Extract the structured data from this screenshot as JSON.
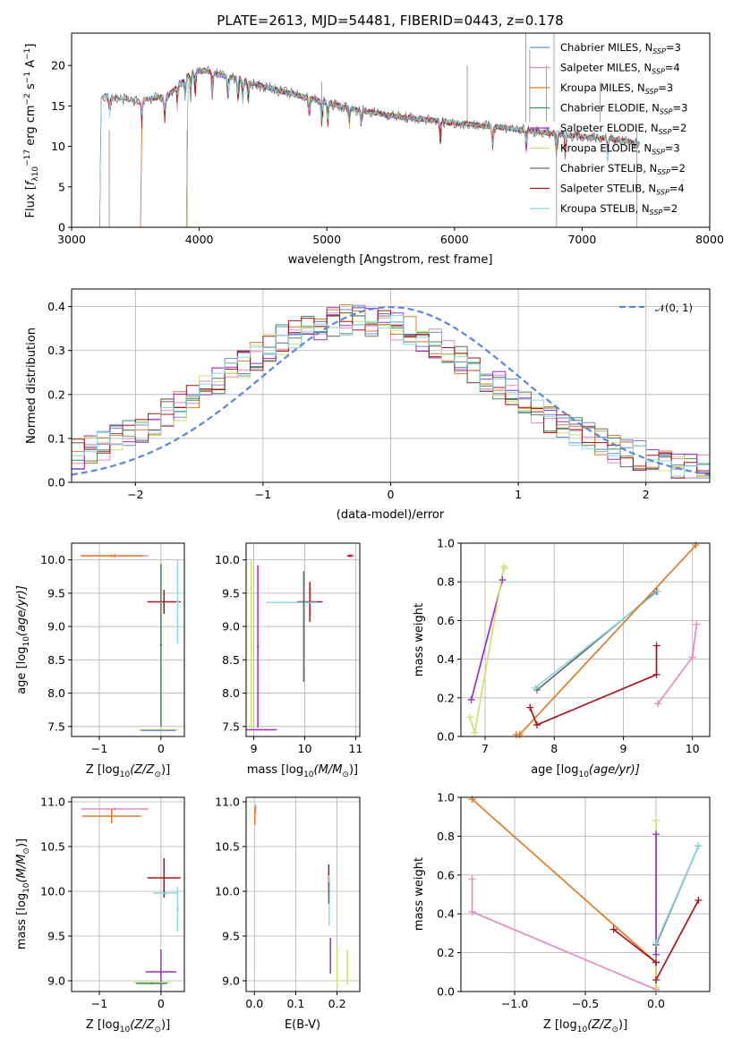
{
  "palette": {
    "Chabrier MILES": "#6b8fd6",
    "Salpeter MILES": "#e48ac4",
    "Kroupa MILES": "#e07b28",
    "Chabrier ELODIE": "#3f8f5a",
    "Salpeter ELODIE": "#9a2fc7",
    "Kroupa ELODIE": "#cde26b",
    "Chabrier STELIB": "#6a6a6a",
    "Salpeter STELIB": "#a8151e",
    "Kroupa STELIB": "#8ad6e0"
  },
  "chart_data": [
    {
      "id": "spectrum",
      "type": "line",
      "title": "PLATE=2613, MJD=54481, FIBERID=0443, z=0.178",
      "xlabel": "wavelength [Angstrom, rest frame]",
      "ylabel_parts": [
        "Flux [",
        "f",
        "λ",
        "10",
        "−17",
        " erg cm",
        "−2",
        " s",
        "−1",
        " A",
        "−1",
        "]"
      ],
      "xlim": [
        3000,
        8000
      ],
      "ylim": [
        0,
        24
      ],
      "xticks": [
        "3000",
        "4000",
        "5000",
        "6000",
        "7000",
        "8000"
      ],
      "xtick_values": [
        3000,
        4000,
        5000,
        6000,
        7000,
        8000
      ],
      "yticks": [
        "0",
        "5",
        "10",
        "15",
        "20"
      ],
      "ytick_values": [
        0,
        5,
        10,
        15,
        20
      ],
      "legend": [
        {
          "model": "Chabrier MILES",
          "n": "3"
        },
        {
          "model": "Salpeter MILES",
          "n": "4"
        },
        {
          "model": "Kroupa MILES",
          "n": "3"
        },
        {
          "model": "Chabrier ELODIE",
          "n": "3"
        },
        {
          "model": "Salpeter ELODIE",
          "n": "2"
        },
        {
          "model": "Kroupa ELODIE",
          "n": "3"
        },
        {
          "model": "Chabrier STELIB",
          "n": "2"
        },
        {
          "model": "Salpeter STELIB",
          "n": "4"
        },
        {
          "model": "Kroupa STELIB",
          "n": "2"
        }
      ],
      "legend_prefix": "N",
      "legend_sub": "SSP",
      "legend_location": "right",
      "continuum_wavelength": [
        3250,
        3500,
        3750,
        3900,
        4000,
        4300,
        4600,
        4900,
        5200,
        5600,
        6000,
        6400,
        6800,
        7200,
        7450
      ],
      "continuum_flux": [
        16.2,
        15.6,
        16.2,
        18.5,
        19.5,
        18.3,
        17.0,
        15.8,
        14.6,
        13.6,
        12.9,
        12.3,
        11.5,
        11.0,
        10.3
      ],
      "low_wavelength_cutoffs": [
        {
          "model": "Chabrier MILES",
          "start": 3540
        },
        {
          "model": "Salpeter MILES",
          "start": 3540
        },
        {
          "model": "Kroupa MILES",
          "start": 3540
        },
        {
          "model": "Chabrier ELODIE",
          "start": 3900
        },
        {
          "model": "Salpeter ELODIE",
          "start": 3900
        },
        {
          "model": "Kroupa ELODIE",
          "start": 3900
        },
        {
          "model": "Chabrier STELIB",
          "start": 3220
        },
        {
          "model": "Salpeter STELIB",
          "start": 3220
        },
        {
          "model": "Kroupa STELIB",
          "start": 3220
        }
      ]
    },
    {
      "id": "residuals",
      "type": "histogram",
      "xlabel": "(data-model)/error",
      "ylabel": "Normed distribution",
      "xlim": [
        -2.5,
        2.5
      ],
      "ylim": [
        0,
        0.44
      ],
      "xticks": [
        "−2",
        "−1",
        "0",
        "1",
        "2"
      ],
      "xtick_values": [
        -2,
        -1,
        0,
        1,
        2
      ],
      "yticks": [
        "0.0",
        "0.1",
        "0.2",
        "0.3",
        "0.4"
      ],
      "ytick_values": [
        0,
        0.1,
        0.2,
        0.3,
        0.4
      ],
      "grid": true,
      "reference_curve": {
        "label": "𝒩(0, 1)",
        "mean": 0,
        "sigma": 1
      },
      "bin_width": 0.1,
      "series_shape": {
        "mean": -0.28,
        "sigma": 1.07,
        "peak": 0.35
      }
    },
    {
      "id": "age_vs_Z",
      "type": "errorbar",
      "xlabel_parts": [
        "Z [log",
        "10",
        "(Z/Z",
        "⊙",
        ")]"
      ],
      "ylabel_parts": [
        "age  [log",
        "10",
        "(age/yr)]"
      ],
      "xlim": [
        -1.45,
        0.38
      ],
      "ylim": [
        7.35,
        10.25
      ],
      "xticks": [
        "−1",
        "0"
      ],
      "xtick_values": [
        -1,
        0
      ],
      "yticks": [
        "7.5",
        "8.0",
        "8.5",
        "9.0",
        "9.5",
        "10.0"
      ],
      "ytick_values": [
        7.5,
        8.0,
        8.5,
        9.0,
        9.5,
        10.0
      ],
      "points": [
        {
          "model": "Salpeter MILES",
          "x": -0.75,
          "xerr": 0.55,
          "y": 10.06,
          "yerr": 0.03
        },
        {
          "model": "Kroupa MILES",
          "x": -0.8,
          "xerr": 0.5,
          "y": 10.06,
          "yerr": 0.02
        },
        {
          "model": "Salpeter STELIB",
          "x": 0.05,
          "xerr": 0.27,
          "y": 9.37,
          "yerr": 0.18
        },
        {
          "model": "Kroupa STELIB",
          "x": 0.27,
          "xerr": 0.02,
          "y": 9.37,
          "yerr": 0.63
        },
        {
          "model": "Kroupa ELODIE",
          "x": 0.0,
          "xerr": 0.02,
          "y": 8.72,
          "yerr": 1.27
        },
        {
          "model": "Chabrier ELODIE",
          "x": 0.0,
          "xerr": 0.02,
          "y": 8.72,
          "yerr": 1.22
        },
        {
          "model": "Kroupa ELODIE",
          "x": -0.04,
          "xerr": 0.32,
          "y": 7.45,
          "yerr": 0.01
        },
        {
          "model": "Chabrier MILES",
          "x": -0.04,
          "xerr": 0.28,
          "y": 7.44,
          "yerr": 0.01
        }
      ]
    },
    {
      "id": "age_vs_mass",
      "type": "errorbar",
      "xlabel_parts": [
        "mass [log",
        "10",
        "(M/M",
        "⊙",
        ")]"
      ],
      "xlim": [
        8.85,
        11.08
      ],
      "ylim": [
        7.35,
        10.25
      ],
      "xticks": [
        "9",
        "10",
        "11"
      ],
      "xtick_values": [
        9,
        10,
        11
      ],
      "yticks": [
        "7.5",
        "8.0",
        "8.5",
        "9.0",
        "9.5",
        "10.0"
      ],
      "ytick_values": [
        7.5,
        8.0,
        8.5,
        9.0,
        9.5,
        10.0
      ],
      "points": [
        {
          "model": "Salpeter MILES",
          "x": 10.92,
          "xerr": 0.06,
          "y": 10.06,
          "yerr": 0.03
        },
        {
          "model": "Salpeter STELIB",
          "x": 10.88,
          "xerr": 0.05,
          "y": 10.06,
          "yerr": 0.02
        },
        {
          "model": "Salpeter STELIB",
          "x": 10.1,
          "xerr": 0.25,
          "y": 9.37,
          "yerr": 0.3
        },
        {
          "model": "Kroupa STELIB",
          "x": 9.75,
          "xerr": 0.5,
          "y": 9.36,
          "yerr": 0.01
        },
        {
          "model": "Chabrier STELIB",
          "x": 9.98,
          "xerr": 0.02,
          "y": 9.0,
          "yerr": 0.83
        },
        {
          "model": "Salpeter ELODIE",
          "x": 9.08,
          "xerr": 0.02,
          "y": 8.7,
          "yerr": 1.22
        },
        {
          "model": "Kroupa ELODIE",
          "x": 8.95,
          "xerr": 0.02,
          "y": 8.72,
          "yerr": 1.27
        },
        {
          "model": "Salpeter ELODIE",
          "x": 9.15,
          "xerr": 0.3,
          "y": 7.45,
          "yerr": 0.01
        }
      ]
    },
    {
      "id": "weight_vs_age",
      "type": "line",
      "xlabel_parts": [
        "age  [log",
        "10",
        "(age/yr)]"
      ],
      "ylabel": "mass weight",
      "xlim": [
        6.65,
        10.25
      ],
      "ylim": [
        0,
        1.0
      ],
      "xticks": [
        "7",
        "8",
        "9",
        "10"
      ],
      "xtick_values": [
        7,
        8,
        9,
        10
      ],
      "yticks": [
        "0.0",
        "0.2",
        "0.4",
        "0.6",
        "0.8",
        "1.0"
      ],
      "ytick_values": [
        0,
        0.2,
        0.4,
        0.6,
        0.8,
        1.0
      ],
      "series": [
        {
          "model": "Salpeter ELODIE",
          "x": [
            6.8,
            7.25
          ],
          "y": [
            0.19,
            0.81
          ]
        },
        {
          "model": "Kroupa ELODIE",
          "x": [
            6.78,
            6.85,
            7.27,
            7.28
          ],
          "y": [
            0.1,
            0.02,
            0.88,
            0.87
          ]
        },
        {
          "model": "Chabrier STELIB",
          "x": [
            7.75,
            9.48
          ],
          "y": [
            0.24,
            0.75
          ]
        },
        {
          "model": "Kroupa STELIB",
          "x": [
            7.72,
            9.5
          ],
          "y": [
            0.25,
            0.75
          ]
        },
        {
          "model": "Kroupa MILES",
          "x": [
            7.45,
            7.5,
            10.05
          ],
          "y": [
            0.01,
            0.01,
            0.99
          ]
        },
        {
          "model": "Salpeter STELIB",
          "x": [
            7.65,
            7.75,
            9.48,
            9.48
          ],
          "y": [
            0.15,
            0.06,
            0.32,
            0.47
          ]
        },
        {
          "model": "Salpeter MILES",
          "x": [
            9.5,
            10.0,
            10.06
          ],
          "y": [
            0.17,
            0.41,
            0.58
          ]
        }
      ]
    },
    {
      "id": "mass_vs_Z",
      "type": "errorbar",
      "xlabel_parts": [
        "Z [log",
        "10",
        "(Z/Z",
        "⊙",
        ")]"
      ],
      "ylabel_parts": [
        "mass [log",
        "10",
        "(M/M",
        "⊙",
        ")]"
      ],
      "xlim": [
        -1.45,
        0.38
      ],
      "ylim": [
        8.88,
        11.05
      ],
      "xticks": [
        "−1",
        "0"
      ],
      "xtick_values": [
        -1,
        0
      ],
      "yticks": [
        "9.0",
        "9.5",
        "10.0",
        "10.5",
        "11.0"
      ],
      "ytick_values": [
        9.0,
        9.5,
        10.0,
        10.5,
        11.0
      ],
      "points": [
        {
          "model": "Salpeter MILES",
          "x": -0.75,
          "xerr": 0.55,
          "y": 10.92,
          "yerr": 0.02
        },
        {
          "model": "Kroupa MILES",
          "x": -0.8,
          "xerr": 0.48,
          "y": 10.84,
          "yerr": 0.08
        },
        {
          "model": "Salpeter STELIB",
          "x": 0.05,
          "xerr": 0.27,
          "y": 10.15,
          "yerr": 0.22
        },
        {
          "model": "Kroupa STELIB",
          "x": 0.07,
          "xerr": 0.2,
          "y": 9.98,
          "yerr": 0.02
        },
        {
          "model": "Kroupa STELIB",
          "x": 0.27,
          "xerr": 0.02,
          "y": 9.8,
          "yerr": 0.25
        },
        {
          "model": "Salpeter ELODIE",
          "x": 0.0,
          "xerr": 0.25,
          "y": 9.1,
          "yerr": 0.25
        },
        {
          "model": "Kroupa ELODIE",
          "x": -0.15,
          "xerr": 0.3,
          "y": 8.98,
          "yerr": 0.01
        },
        {
          "model": "Chabrier ELODIE",
          "x": -0.15,
          "xerr": 0.25,
          "y": 8.97,
          "yerr": 0.01
        }
      ]
    },
    {
      "id": "mass_vs_ebv",
      "type": "errorbar",
      "xlabel": "E(B-V)",
      "xlim": [
        -0.02,
        0.255
      ],
      "ylim": [
        8.88,
        11.05
      ],
      "xticks": [
        "0.0",
        "0.1",
        "0.2"
      ],
      "xtick_values": [
        0,
        0.1,
        0.2
      ],
      "yticks": [
        "9.0",
        "9.5",
        "10.0",
        "10.5",
        "11.0"
      ],
      "ytick_values": [
        9.0,
        9.5,
        10.0,
        10.5,
        11.0
      ],
      "points": [
        {
          "model": "Salpeter MILES",
          "x": 0.003,
          "xerr": 0.001,
          "y": 10.92,
          "yerr": 0.05
        },
        {
          "model": "Kroupa MILES",
          "x": 0.001,
          "xerr": 0.001,
          "y": 10.84,
          "yerr": 0.1
        },
        {
          "model": "Salpeter STELIB",
          "x": 0.18,
          "xerr": 0.001,
          "y": 10.15,
          "yerr": 0.15
        },
        {
          "model": "Kroupa STELIB",
          "x": 0.181,
          "xerr": 0.001,
          "y": 9.9,
          "yerr": 0.28
        },
        {
          "model": "Chabrier STELIB",
          "x": 0.18,
          "xerr": 0.001,
          "y": 9.98,
          "yerr": 0.12
        },
        {
          "model": "Salpeter ELODIE",
          "x": 0.184,
          "xerr": 0.001,
          "y": 9.28,
          "yerr": 0.2
        },
        {
          "model": "Kroupa ELODIE",
          "x": 0.2,
          "xerr": 0.001,
          "y": 9.15,
          "yerr": 0.22
        },
        {
          "model": "Kroupa ELODIE",
          "x": 0.225,
          "xerr": 0.001,
          "y": 9.15,
          "yerr": 0.2
        }
      ]
    },
    {
      "id": "weight_vs_Z",
      "type": "line",
      "xlabel_parts": [
        "Z [log",
        "10",
        "(Z/Z",
        "⊙",
        ")]"
      ],
      "ylabel": "mass weight",
      "xlim": [
        -1.38,
        0.38
      ],
      "ylim": [
        0,
        1.0
      ],
      "xticks": [
        "−1.0",
        "−0.5",
        "0.0"
      ],
      "xtick_values": [
        -1.0,
        -0.5,
        0.0
      ],
      "yticks": [
        "0.0",
        "0.2",
        "0.4",
        "0.6",
        "0.8",
        "1.0"
      ],
      "ytick_values": [
        0,
        0.2,
        0.4,
        0.6,
        0.8,
        1.0
      ],
      "series": [
        {
          "model": "Kroupa MILES",
          "x": [
            -1.3,
            0.0,
            0.0
          ],
          "y": [
            0.99,
            0.15,
            0.01
          ]
        },
        {
          "model": "Salpeter MILES",
          "x": [
            -1.3,
            -1.3,
            0.0
          ],
          "y": [
            0.58,
            0.41,
            0.01
          ]
        },
        {
          "model": "Salpeter STELIB",
          "x": [
            -0.3,
            0.0,
            0.0,
            0.3
          ],
          "y": [
            0.32,
            0.15,
            0.06,
            0.47
          ]
        },
        {
          "model": "Kroupa ELODIE",
          "x": [
            0.0,
            0.0
          ],
          "y": [
            0.02,
            0.88
          ]
        },
        {
          "model": "Salpeter ELODIE",
          "x": [
            0.0,
            0.0
          ],
          "y": [
            0.19,
            0.81
          ]
        },
        {
          "model": "Chabrier STELIB",
          "x": [
            0.0,
            0.3
          ],
          "y": [
            0.24,
            0.75
          ]
        },
        {
          "model": "Kroupa STELIB",
          "x": [
            0.0,
            0.3
          ],
          "y": [
            0.25,
            0.75
          ]
        }
      ]
    }
  ]
}
